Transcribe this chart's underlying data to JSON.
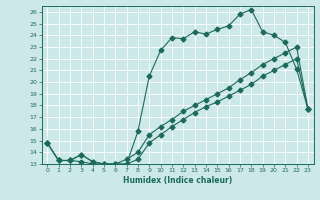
{
  "xlabel": "Humidex (Indice chaleur)",
  "xlim": [
    -0.5,
    23.5
  ],
  "ylim": [
    13,
    26.5
  ],
  "yticks": [
    13,
    14,
    15,
    16,
    17,
    18,
    19,
    20,
    21,
    22,
    23,
    24,
    25,
    26
  ],
  "xticks": [
    0,
    1,
    2,
    3,
    4,
    5,
    6,
    7,
    8,
    9,
    10,
    11,
    12,
    13,
    14,
    15,
    16,
    17,
    18,
    19,
    20,
    21,
    22,
    23
  ],
  "background_color": "#cde8e8",
  "line_color": "#1a6b5a",
  "grid_color": "#b8d8d8",
  "line1_x": [
    0,
    1,
    2,
    3,
    4,
    5,
    6,
    7,
    8,
    9,
    10,
    11,
    12,
    13,
    14,
    15,
    16,
    17,
    18,
    19,
    20,
    21,
    22,
    23
  ],
  "line1_y": [
    14.8,
    13.3,
    13.3,
    13.8,
    13.2,
    13.0,
    13.0,
    13.0,
    15.8,
    20.5,
    22.7,
    23.8,
    23.7,
    24.3,
    24.1,
    24.5,
    24.8,
    25.8,
    26.2,
    24.3,
    24.0,
    23.4,
    21.1,
    17.7
  ],
  "line2_x": [
    0,
    1,
    2,
    3,
    4,
    5,
    6,
    7,
    8,
    9,
    10,
    11,
    12,
    13,
    14,
    15,
    16,
    17,
    18,
    19,
    20,
    21,
    22,
    23
  ],
  "line2_y": [
    14.8,
    13.3,
    13.3,
    13.8,
    13.2,
    13.0,
    13.0,
    13.0,
    13.4,
    14.8,
    15.5,
    16.2,
    16.8,
    17.4,
    17.9,
    18.3,
    18.8,
    19.3,
    19.8,
    20.5,
    21.0,
    21.5,
    22.0,
    17.7
  ],
  "line3_x": [
    0,
    1,
    2,
    3,
    4,
    5,
    6,
    7,
    8,
    9,
    10,
    11,
    12,
    13,
    14,
    15,
    16,
    17,
    18,
    19,
    20,
    21,
    22,
    23
  ],
  "line3_y": [
    14.8,
    13.3,
    13.3,
    13.2,
    13.0,
    13.0,
    13.0,
    13.4,
    14.0,
    15.5,
    16.2,
    16.8,
    17.5,
    18.0,
    18.5,
    19.0,
    19.5,
    20.2,
    20.8,
    21.5,
    22.0,
    22.5,
    23.0,
    17.7
  ]
}
